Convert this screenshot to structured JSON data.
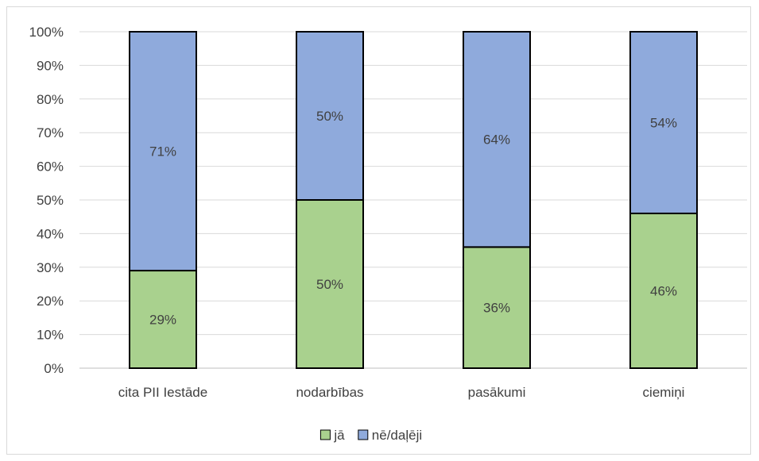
{
  "chart_data": {
    "type": "bar",
    "stacked": true,
    "percent_stacked": true,
    "categories": [
      "cita PII Iestāde",
      "nodarbības",
      "pasākumi",
      "ciemiņi"
    ],
    "series": [
      {
        "name": "jā",
        "values": [
          29,
          50,
          36,
          46
        ],
        "color": "#a9d18e"
      },
      {
        "name": "nē/daļēji",
        "values": [
          71,
          50,
          64,
          54
        ],
        "color": "#8faadc"
      }
    ],
    "data_labels": [
      [
        "29%",
        "50%",
        "36%",
        "46%"
      ],
      [
        "71%",
        "50%",
        "64%",
        "54%"
      ]
    ],
    "y_ticks": [
      "0%",
      "10%",
      "20%",
      "30%",
      "40%",
      "50%",
      "60%",
      "70%",
      "80%",
      "90%",
      "100%"
    ],
    "ylim": [
      0,
      100
    ],
    "grid": true,
    "legend_position": "bottom"
  }
}
